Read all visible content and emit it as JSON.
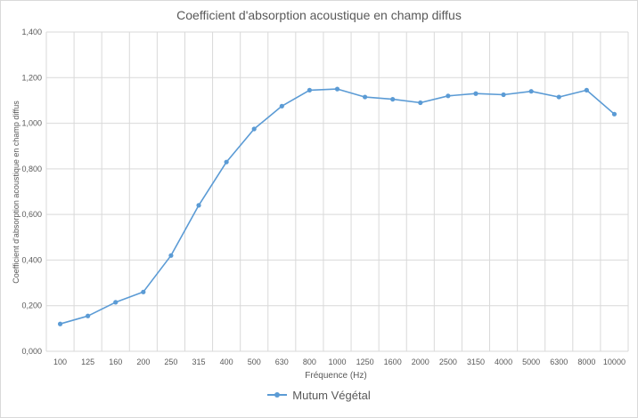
{
  "chart_data": {
    "type": "line",
    "title": "Coefficient d'absorption acoustique en champ diffus",
    "xlabel": "Fréquence (Hz)",
    "ylabel": "Coefficient d'absorption acoustique en champ diffus",
    "categories": [
      "100",
      "125",
      "160",
      "200",
      "250",
      "315",
      "400",
      "500",
      "630",
      "800",
      "1000",
      "1250",
      "1600",
      "2000",
      "2500",
      "3150",
      "4000",
      "5000",
      "6300",
      "8000",
      "10000"
    ],
    "y_ticks": [
      "0,000",
      "0,200",
      "0,400",
      "0,600",
      "0,800",
      "1,000",
      "1,200",
      "1,400"
    ],
    "ylim": [
      0,
      1.4
    ],
    "grid": true,
    "legend_position": "bottom",
    "series": [
      {
        "name": "Mutum Végétal",
        "color": "#5b9bd5",
        "values": [
          0.12,
          0.155,
          0.215,
          0.26,
          0.42,
          0.64,
          0.83,
          0.975,
          1.075,
          1.145,
          1.15,
          1.115,
          1.105,
          1.09,
          1.12,
          1.13,
          1.125,
          1.14,
          1.115,
          1.145,
          1.04
        ]
      }
    ]
  }
}
